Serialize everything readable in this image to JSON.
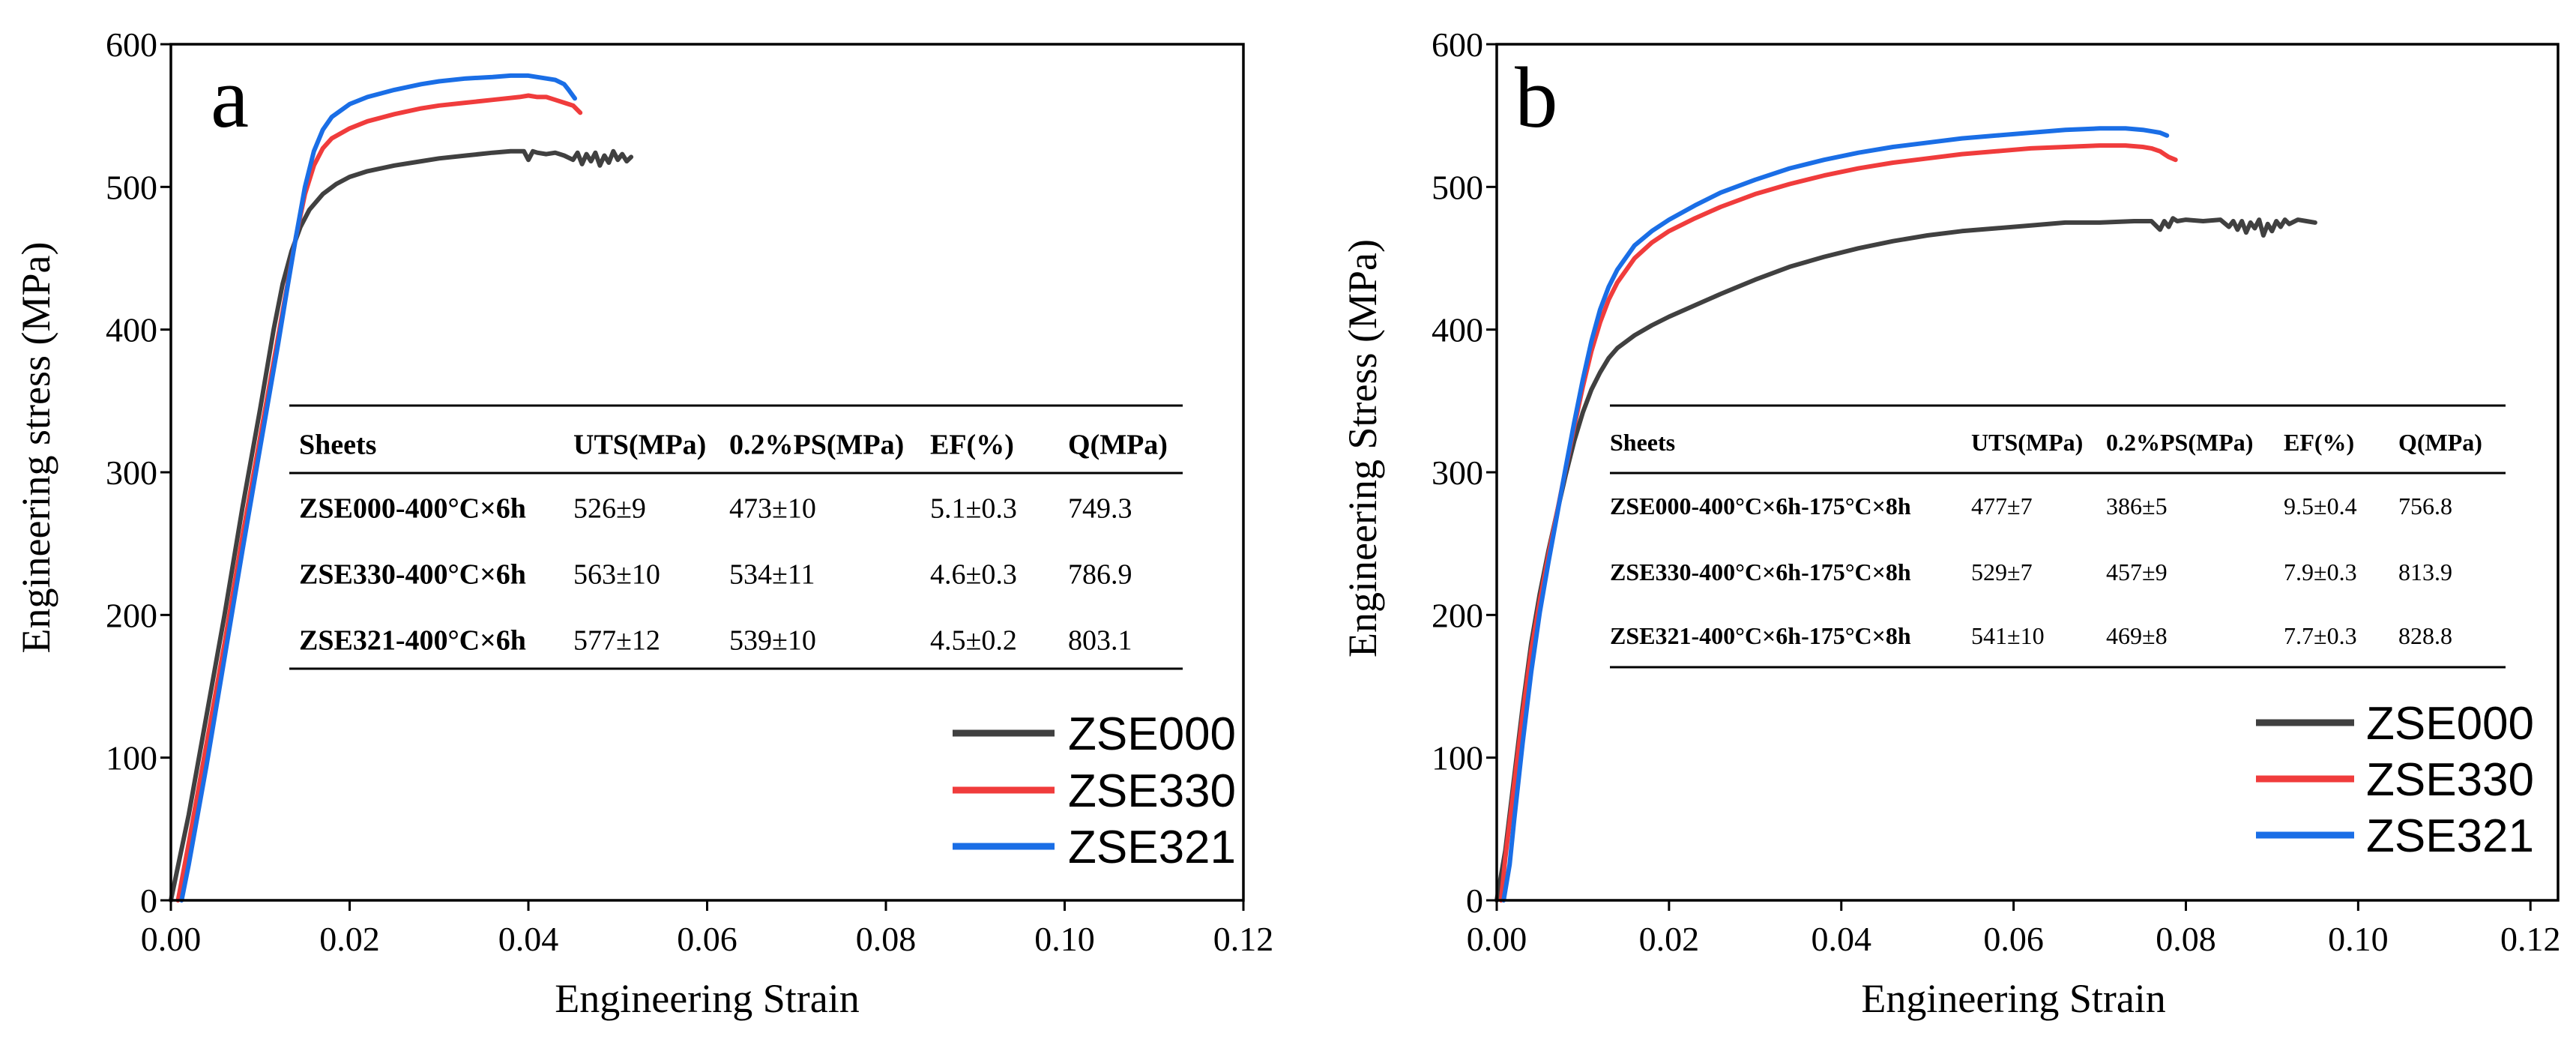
{
  "chart_data": [
    {
      "type": "line",
      "panel_label": "a",
      "title": "",
      "xlabel": "Engineering Strain",
      "ylabel": "Engineering stress (MPa)",
      "xlim": [
        0,
        0.12
      ],
      "ylim": [
        0,
        600
      ],
      "xticks": [
        0,
        0.02,
        0.04,
        0.06,
        0.08,
        0.1,
        0.12
      ],
      "xtick_labels": [
        "0.00",
        "0.02",
        "0.04",
        "0.06",
        "0.08",
        "0.10",
        "0.12"
      ],
      "yticks": [
        0,
        100,
        200,
        300,
        400,
        500,
        600
      ],
      "ytick_labels": [
        "0",
        "100",
        "200",
        "300",
        "400",
        "500",
        "600"
      ],
      "grid": false,
      "legend_position": "lower-right",
      "series": [
        {
          "name": "ZSE000",
          "color": "#404040",
          "x": [
            0,
            0.002,
            0.004,
            0.006,
            0.008,
            0.01,
            0.0115,
            0.0125,
            0.0135,
            0.0145,
            0.0155,
            0.017,
            0.0185,
            0.02,
            0.022,
            0.025,
            0.028,
            0.03,
            0.033,
            0.036,
            0.038,
            0.0395,
            0.04,
            0.0405,
            0.041,
            0.042,
            0.043,
            0.044,
            0.045,
            0.0455,
            0.046,
            0.0465,
            0.047,
            0.0475,
            0.048,
            0.0485,
            0.049,
            0.0495,
            0.05,
            0.0505,
            0.051,
            0.0515
          ],
          "y": [
            0,
            60,
            130,
            200,
            275,
            345,
            400,
            432,
            455,
            472,
            484,
            495,
            502,
            507,
            511,
            515,
            518,
            520,
            522,
            524,
            525,
            525,
            519,
            525,
            524,
            523,
            524,
            522,
            519,
            524,
            516,
            523,
            518,
            524,
            515,
            522,
            517,
            525,
            519,
            523,
            518,
            521
          ]
        },
        {
          "name": "ZSE330",
          "color": "#f03c3c",
          "x": [
            0.0008,
            0.002,
            0.004,
            0.006,
            0.008,
            0.01,
            0.012,
            0.013,
            0.014,
            0.015,
            0.016,
            0.017,
            0.018,
            0.02,
            0.022,
            0.025,
            0.028,
            0.03,
            0.033,
            0.036,
            0.039,
            0.04,
            0.041,
            0.042,
            0.043,
            0.044,
            0.045,
            0.0458
          ],
          "y": [
            0,
            40,
            110,
            180,
            255,
            325,
            395,
            430,
            465,
            495,
            515,
            527,
            534,
            541,
            546,
            551,
            555,
            557,
            559,
            561,
            563,
            564,
            563,
            563,
            561,
            559,
            557,
            552
          ]
        },
        {
          "name": "ZSE321",
          "color": "#1a6ee6",
          "x": [
            0.0012,
            0.002,
            0.004,
            0.006,
            0.008,
            0.01,
            0.012,
            0.013,
            0.014,
            0.015,
            0.016,
            0.017,
            0.018,
            0.02,
            0.022,
            0.025,
            0.028,
            0.03,
            0.033,
            0.036,
            0.038,
            0.04,
            0.041,
            0.042,
            0.043,
            0.044,
            0.0445,
            0.0452
          ],
          "y": [
            0,
            25,
            95,
            170,
            245,
            318,
            390,
            428,
            465,
            500,
            525,
            540,
            549,
            558,
            563,
            568,
            572,
            574,
            576,
            577,
            578,
            578,
            577,
            576,
            575,
            572,
            568,
            562
          ]
        }
      ],
      "inset_table": {
        "headers": [
          "Sheets",
          "UTS(MPa)",
          "0.2%PS(MPa)",
          "EF(%)",
          "Q(MPa)"
        ],
        "rows": [
          [
            "ZSE000-400°C×6h",
            "526±9",
            "473±10",
            "5.1±0.3",
            "749.3"
          ],
          [
            "ZSE330-400°C×6h",
            "563±10",
            "534±11",
            "4.6±0.3",
            "786.9"
          ],
          [
            "ZSE321-400°C×6h",
            "577±12",
            "539±10",
            "4.5±0.2",
            "803.1"
          ]
        ]
      }
    },
    {
      "type": "line",
      "panel_label": "b",
      "title": "",
      "xlabel": "Engineering Strain",
      "ylabel": "Engineering Stress (MPa)",
      "xlim": [
        0,
        0.1232
      ],
      "ylim": [
        0,
        600
      ],
      "xticks": [
        0,
        0.02,
        0.04,
        0.06,
        0.08,
        0.1,
        0.12
      ],
      "xtick_labels": [
        "0.00",
        "0.02",
        "0.04",
        "0.06",
        "0.08",
        "0.10",
        "0.12"
      ],
      "yticks": [
        0,
        100,
        200,
        300,
        400,
        500,
        600
      ],
      "ytick_labels": [
        "0",
        "100",
        "200",
        "300",
        "400",
        "500",
        "600"
      ],
      "grid": false,
      "legend_position": "lower-right",
      "series": [
        {
          "name": "ZSE000",
          "color": "#404040",
          "x": [
            0,
            0.001,
            0.002,
            0.003,
            0.004,
            0.005,
            0.006,
            0.007,
            0.008,
            0.009,
            0.01,
            0.011,
            0.012,
            0.013,
            0.014,
            0.016,
            0.018,
            0.02,
            0.023,
            0.026,
            0.03,
            0.034,
            0.038,
            0.042,
            0.046,
            0.05,
            0.054,
            0.058,
            0.062,
            0.066,
            0.07,
            0.074,
            0.076,
            0.077,
            0.0775,
            0.078,
            0.0785,
            0.079,
            0.08,
            0.082,
            0.084,
            0.085,
            0.0855,
            0.086,
            0.0865,
            0.087,
            0.0875,
            0.088,
            0.0885,
            0.089,
            0.0895,
            0.09,
            0.0905,
            0.091,
            0.0915,
            0.092,
            0.093,
            0.094,
            0.095
          ],
          "y": [
            0,
            35,
            85,
            135,
            180,
            215,
            245,
            272,
            298,
            322,
            342,
            358,
            370,
            380,
            387,
            396,
            403,
            409,
            417,
            425,
            435,
            444,
            451,
            457,
            462,
            466,
            469,
            471,
            473,
            475,
            475,
            476,
            476,
            470,
            476,
            472,
            478,
            476,
            477,
            476,
            477,
            472,
            476,
            470,
            476,
            468,
            475,
            471,
            477,
            466,
            474,
            469,
            476,
            472,
            477,
            474,
            477,
            476,
            475
          ]
        },
        {
          "name": "ZSE330",
          "color": "#f03c3c",
          "x": [
            0.0005,
            0.001,
            0.002,
            0.003,
            0.004,
            0.005,
            0.006,
            0.007,
            0.008,
            0.009,
            0.01,
            0.011,
            0.012,
            0.013,
            0.014,
            0.016,
            0.018,
            0.02,
            0.023,
            0.026,
            0.03,
            0.034,
            0.038,
            0.042,
            0.046,
            0.05,
            0.054,
            0.058,
            0.062,
            0.066,
            0.07,
            0.073,
            0.075,
            0.076,
            0.077,
            0.0775,
            0.078,
            0.0788
          ],
          "y": [
            0,
            30,
            80,
            130,
            175,
            210,
            242,
            272,
            302,
            332,
            360,
            385,
            405,
            421,
            433,
            450,
            461,
            469,
            478,
            486,
            495,
            502,
            508,
            513,
            517,
            520,
            523,
            525,
            527,
            528,
            529,
            529,
            528,
            527,
            525,
            523,
            521,
            519
          ]
        },
        {
          "name": "ZSE321",
          "color": "#1a6ee6",
          "x": [
            0.0008,
            0.0015,
            0.002,
            0.003,
            0.004,
            0.005,
            0.006,
            0.007,
            0.008,
            0.009,
            0.01,
            0.011,
            0.012,
            0.013,
            0.014,
            0.016,
            0.018,
            0.02,
            0.023,
            0.026,
            0.03,
            0.034,
            0.038,
            0.042,
            0.046,
            0.05,
            0.054,
            0.058,
            0.062,
            0.066,
            0.07,
            0.073,
            0.075,
            0.076,
            0.077,
            0.0778
          ],
          "y": [
            0,
            25,
            55,
            110,
            160,
            202,
            237,
            270,
            303,
            335,
            365,
            392,
            414,
            430,
            442,
            459,
            469,
            477,
            487,
            496,
            505,
            513,
            519,
            524,
            528,
            531,
            534,
            536,
            538,
            540,
            541,
            541,
            540,
            539,
            538,
            536
          ]
        }
      ],
      "inset_table": {
        "headers": [
          "Sheets",
          "UTS(MPa)",
          "0.2%PS(MPa)",
          "EF(%)",
          "Q(MPa)"
        ],
        "rows": [
          [
            "ZSE000-400°C×6h-175°C×8h",
            "477±7",
            "386±5",
            "9.5±0.4",
            "756.8"
          ],
          [
            "ZSE330-400°C×6h-175°C×8h",
            "529±7",
            "457±9",
            "7.9±0.3",
            "813.9"
          ],
          [
            "ZSE321-400°C×6h-175°C×8h",
            "541±10",
            "469±8",
            "7.7±0.3",
            "828.8"
          ]
        ]
      }
    }
  ]
}
